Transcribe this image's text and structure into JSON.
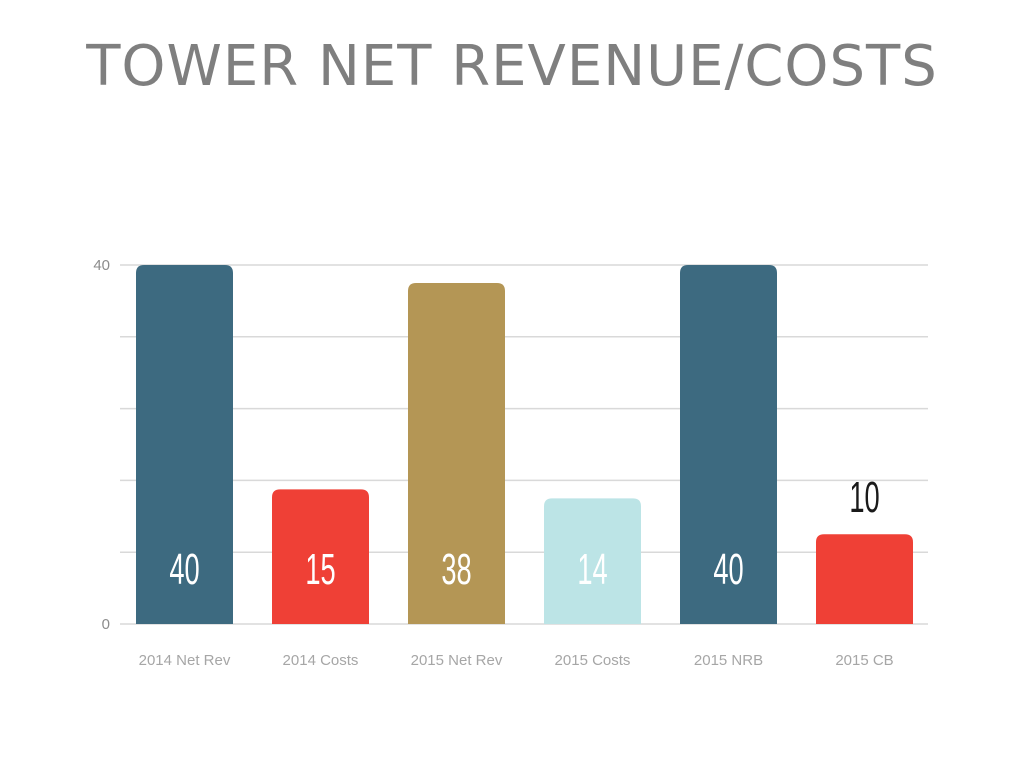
{
  "chart_data": {
    "type": "bar",
    "title": "TOWER NET REVENUE/COSTS",
    "categories": [
      "2014 Net Rev",
      "2014 Costs",
      "2015 Net Rev",
      "2015 Costs",
      "2015 NRB",
      "2015 CB"
    ],
    "values": [
      40,
      15,
      38,
      14,
      40,
      10
    ],
    "data_labels": [
      "40",
      "15",
      "38",
      "14",
      "40",
      "10"
    ],
    "bar_colors": [
      "#3d6a80",
      "#ef4036",
      "#b49655",
      "#bce4e6",
      "#3d6a80",
      "#ef4036"
    ],
    "label_colors": [
      "#ffffff",
      "#ffffff",
      "#ffffff",
      "#ffffff",
      "#ffffff",
      "#1a1a1a"
    ],
    "label_inside": [
      true,
      true,
      true,
      true,
      true,
      false
    ],
    "ylim": [
      0,
      40
    ],
    "y_ticks": [
      0,
      40
    ],
    "grid": true,
    "xlabel": "",
    "ylabel": ""
  }
}
